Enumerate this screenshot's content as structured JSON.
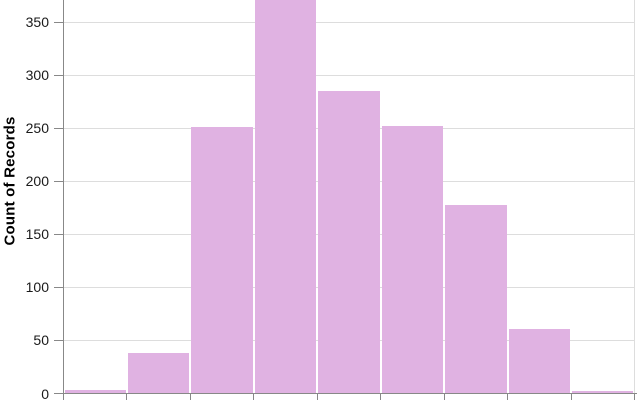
{
  "chart_data": {
    "type": "bar",
    "subtype": "histogram",
    "title": "",
    "xlabel": "",
    "ylabel": "Count of Records",
    "y_ticks": [
      0,
      50,
      100,
      150,
      200,
      250,
      300,
      350
    ],
    "values": [
      3,
      38,
      251,
      380,
      285,
      252,
      178,
      61,
      2
    ],
    "clipped_indices": [
      3
    ],
    "clipped_min_visible_value": 371,
    "x_tick_count": 10,
    "x_tick_labels_visible": false,
    "ylim_visible": [
      0,
      371
    ],
    "grid": true,
    "legend": null,
    "colors": {
      "bar_fill": "#e0b2e2",
      "axis": "#888888",
      "grid": "#dddddd",
      "tick_label": "#1a1a1a",
      "axis_title": "#000000",
      "background": "#ffffff"
    }
  }
}
